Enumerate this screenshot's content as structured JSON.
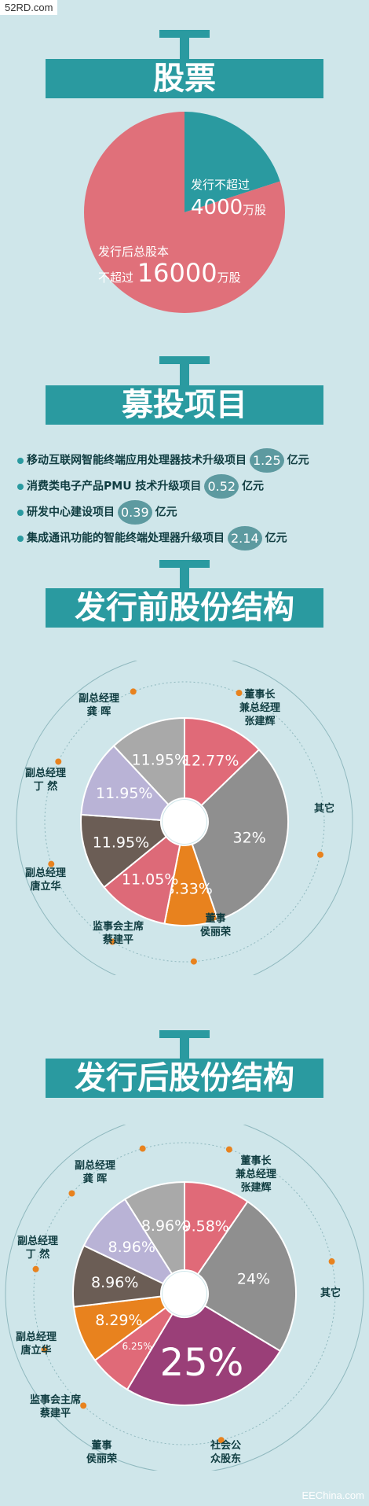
{
  "watermark_top": "52RD.com",
  "watermark_bottom": "EEChina.com",
  "section1": {
    "title": "股票",
    "chart_data": {
      "type": "pie",
      "slices": [
        {
          "label": "发行不超过",
          "value_text": "4000",
          "unit": "万股",
          "value": 4000,
          "color": "#2a9aa0"
        },
        {
          "label": "发行后总股本",
          "label2": "不超过",
          "value_text": "16000",
          "unit": "万股",
          "value": 16000,
          "color": "#e0707a"
        }
      ]
    }
  },
  "section2": {
    "title": "募投项目",
    "items": [
      {
        "text": "移动互联网智能终端应用处理器技术升级项目",
        "value": "1.25",
        "unit": "亿元"
      },
      {
        "text": "消费类电子产品PMU 技术升级项目",
        "value": "0.52",
        "unit": "亿元"
      },
      {
        "text": "研发中心建设项目",
        "value": "0.39",
        "unit": "亿元"
      },
      {
        "text": "集成通讯功能的智能终端处理器升级项目",
        "value": "2.14",
        "unit": "亿元"
      }
    ]
  },
  "section3": {
    "title": "发行前股份结构",
    "chart_data": {
      "type": "pie",
      "slices": [
        {
          "name": "董事长\n兼总经理\n张建辉",
          "value": 12.77,
          "label": "12.77%",
          "color": "#e06a78"
        },
        {
          "name": "其它",
          "value": 32,
          "label": "32%",
          "color": "#8f8f8f"
        },
        {
          "name": "董事\n侯丽荣",
          "value": 8.33,
          "label": "8.33%",
          "color": "#e8821e"
        },
        {
          "name": "监事会主席\n蔡建平",
          "value": 11.05,
          "label": "11.05%",
          "color": "#dd6a78"
        },
        {
          "name": "副总经理\n唐立华",
          "value": 11.95,
          "label": "11.95%",
          "color": "#6b5d55"
        },
        {
          "name": "副总经理\n丁 然",
          "value": 11.95,
          "label": "11.95%",
          "color": "#b9b3d6"
        },
        {
          "name": "副总经理\n龚 晖",
          "value": 11.95,
          "label": "11.95%",
          "color": "#a9a9a9"
        }
      ]
    }
  },
  "section4": {
    "title": "发行后股份结构",
    "chart_data": {
      "type": "pie",
      "slices": [
        {
          "name": "董事长\n兼总经理\n张建辉",
          "value": 9.58,
          "label": "9.58%",
          "color": "#e06a78"
        },
        {
          "name": "其它",
          "value": 24,
          "label": "24%",
          "color": "#8f8f8f"
        },
        {
          "name": "社会公\n众股东",
          "value": 25,
          "label": "25%",
          "color": "#9a3f78"
        },
        {
          "name": "董事\n侯丽荣",
          "value": 6.25,
          "label": "6.25%",
          "color": "#e06a78"
        },
        {
          "name": "监事会主席\n蔡建平",
          "value": 8.29,
          "label": "8.29%",
          "color": "#e8821e"
        },
        {
          "name": "副总经理\n唐立华",
          "value": 8.96,
          "label": "8.96%",
          "color": "#6b5d55"
        },
        {
          "name": "副总经理\n丁 然",
          "value": 8.96,
          "label": "8.96%",
          "color": "#b9b3d6"
        },
        {
          "name": "副总经理\n龚 晖",
          "value": 8.96,
          "label": "8.96%",
          "color": "#a9a9a9"
        }
      ]
    }
  }
}
